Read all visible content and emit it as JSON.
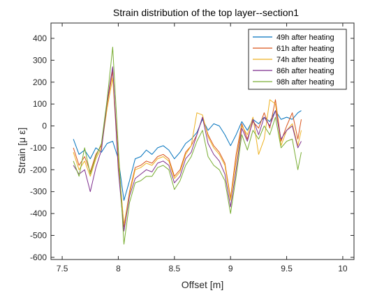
{
  "chart_data": {
    "type": "line",
    "title": "Strain distribution of the top layer--section1",
    "xlabel": "Offset [m]",
    "ylabel": "Strain [μ ε]",
    "xlim": [
      7.4,
      10.1
    ],
    "ylim": [
      -610,
      470
    ],
    "xticks": [
      7.5,
      8,
      8.5,
      9,
      9.5,
      10
    ],
    "yticks": [
      -600,
      -500,
      -400,
      -300,
      -200,
      -100,
      0,
      100,
      200,
      300,
      400
    ],
    "xtick_labels": [
      "7.5",
      "8",
      "8.5",
      "9",
      "9.5",
      "10"
    ],
    "ytick_labels": [
      "-600",
      "-500",
      "-400",
      "-300",
      "-200",
      "-100",
      "0",
      "100",
      "200",
      "300",
      "400"
    ],
    "grid": false,
    "legend_position": "top-right",
    "series": [
      {
        "name": "49h after heating",
        "color": "#0072BD",
        "x": [
          7.6,
          7.65,
          7.7,
          7.75,
          7.8,
          7.85,
          7.9,
          7.95,
          8.0,
          8.05,
          8.1,
          8.15,
          8.2,
          8.25,
          8.3,
          8.35,
          8.4,
          8.45,
          8.5,
          8.55,
          8.6,
          8.65,
          8.7,
          8.75,
          8.8,
          8.85,
          8.9,
          8.95,
          9.0,
          9.05,
          9.1,
          9.15,
          9.2,
          9.25,
          9.3,
          9.35,
          9.4,
          9.45,
          9.5,
          9.55,
          9.6,
          9.63
        ],
        "y": [
          -60,
          -130,
          -110,
          -150,
          -100,
          -120,
          -80,
          -70,
          -150,
          -340,
          -250,
          -150,
          -140,
          -110,
          -130,
          -100,
          -90,
          -110,
          -150,
          -120,
          -80,
          -60,
          -30,
          30,
          -20,
          10,
          0,
          -40,
          -90,
          -40,
          20,
          -20,
          30,
          10,
          40,
          20,
          70,
          30,
          40,
          30,
          60,
          70
        ]
      },
      {
        "name": "61h after heating",
        "color": "#D95319",
        "x": [
          7.6,
          7.65,
          7.7,
          7.75,
          7.8,
          7.85,
          7.9,
          7.95,
          8.0,
          8.05,
          8.1,
          8.15,
          8.2,
          8.25,
          8.3,
          8.35,
          8.4,
          8.45,
          8.5,
          8.55,
          8.6,
          8.65,
          8.7,
          8.75,
          8.8,
          8.85,
          8.9,
          8.95,
          9.0,
          9.05,
          9.1,
          9.15,
          9.2,
          9.25,
          9.3,
          9.35,
          9.4,
          9.45,
          9.5,
          9.55,
          9.6,
          9.63
        ],
        "y": [
          -100,
          -180,
          -140,
          -210,
          -130,
          -90,
          100,
          250,
          -150,
          -460,
          -300,
          -190,
          -180,
          -160,
          -170,
          -140,
          -130,
          -150,
          -230,
          -200,
          -120,
          -90,
          -40,
          40,
          -40,
          -90,
          -120,
          -170,
          -330,
          -130,
          10,
          -60,
          20,
          -10,
          60,
          -10,
          120,
          -70,
          0,
          60,
          -60,
          30
        ]
      },
      {
        "name": "74h after heating",
        "color": "#EDB120",
        "x": [
          7.6,
          7.65,
          7.7,
          7.75,
          7.8,
          7.85,
          7.9,
          7.95,
          8.0,
          8.05,
          8.1,
          8.15,
          8.2,
          8.25,
          8.3,
          8.35,
          8.4,
          8.45,
          8.5,
          8.55,
          8.6,
          8.65,
          8.7,
          8.75,
          8.8,
          8.85,
          8.9,
          8.95,
          9.0,
          9.05,
          9.1,
          9.15,
          9.2,
          9.25,
          9.3,
          9.35,
          9.4,
          9.45,
          9.5,
          9.55,
          9.6,
          9.63
        ],
        "y": [
          -120,
          -200,
          -160,
          -230,
          -150,
          -100,
          80,
          220,
          -170,
          -450,
          -310,
          -200,
          -190,
          -170,
          -180,
          -150,
          -140,
          -160,
          -240,
          -210,
          -130,
          -90,
          60,
          50,
          -50,
          -100,
          -130,
          -180,
          -340,
          -160,
          0,
          -40,
          40,
          -130,
          -60,
          120,
          100,
          -90,
          -20,
          10,
          -90,
          -20
        ]
      },
      {
        "name": "86h after heating",
        "color": "#7E2F8E",
        "x": [
          7.6,
          7.65,
          7.7,
          7.75,
          7.8,
          7.85,
          7.9,
          7.95,
          8.0,
          8.05,
          8.1,
          8.15,
          8.2,
          8.25,
          8.3,
          8.35,
          8.4,
          8.45,
          8.5,
          8.55,
          8.6,
          8.65,
          8.7,
          8.75,
          8.8,
          8.85,
          8.9,
          8.95,
          9.0,
          9.05,
          9.1,
          9.15,
          9.2,
          9.25,
          9.3,
          9.35,
          9.4,
          9.45,
          9.5,
          9.55,
          9.6,
          9.63
        ],
        "y": [
          -180,
          -220,
          -200,
          -300,
          -190,
          -110,
          110,
          270,
          -200,
          -480,
          -320,
          -240,
          -220,
          -200,
          -210,
          -170,
          -160,
          -180,
          -260,
          -230,
          -150,
          -120,
          -40,
          40,
          -80,
          -130,
          -160,
          -220,
          -370,
          -200,
          -10,
          -70,
          30,
          -40,
          40,
          0,
          70,
          -60,
          -20,
          0,
          -100,
          -70
        ]
      },
      {
        "name": "98h after heating",
        "color": "#77AC30",
        "x": [
          7.6,
          7.65,
          7.7,
          7.75,
          7.8,
          7.85,
          7.9,
          7.95,
          8.0,
          8.05,
          8.1,
          8.15,
          8.2,
          8.25,
          8.3,
          8.35,
          8.4,
          8.45,
          8.5,
          8.55,
          8.6,
          8.65,
          8.7,
          8.75,
          8.8,
          8.85,
          8.9,
          8.95,
          9.0,
          9.05,
          9.1,
          9.15,
          9.2,
          9.25,
          9.3,
          9.35,
          9.4,
          9.45,
          9.5,
          9.55,
          9.6,
          9.63
        ],
        "y": [
          -160,
          -230,
          -100,
          -220,
          -140,
          -80,
          120,
          360,
          -100,
          -540,
          -350,
          -260,
          -250,
          -230,
          -230,
          -190,
          -180,
          -200,
          -290,
          -250,
          -180,
          -140,
          -70,
          -20,
          -140,
          -180,
          -200,
          -250,
          -400,
          -230,
          -40,
          -110,
          -20,
          -60,
          0,
          -40,
          40,
          -100,
          -70,
          -60,
          -200,
          -120
        ]
      }
    ]
  }
}
